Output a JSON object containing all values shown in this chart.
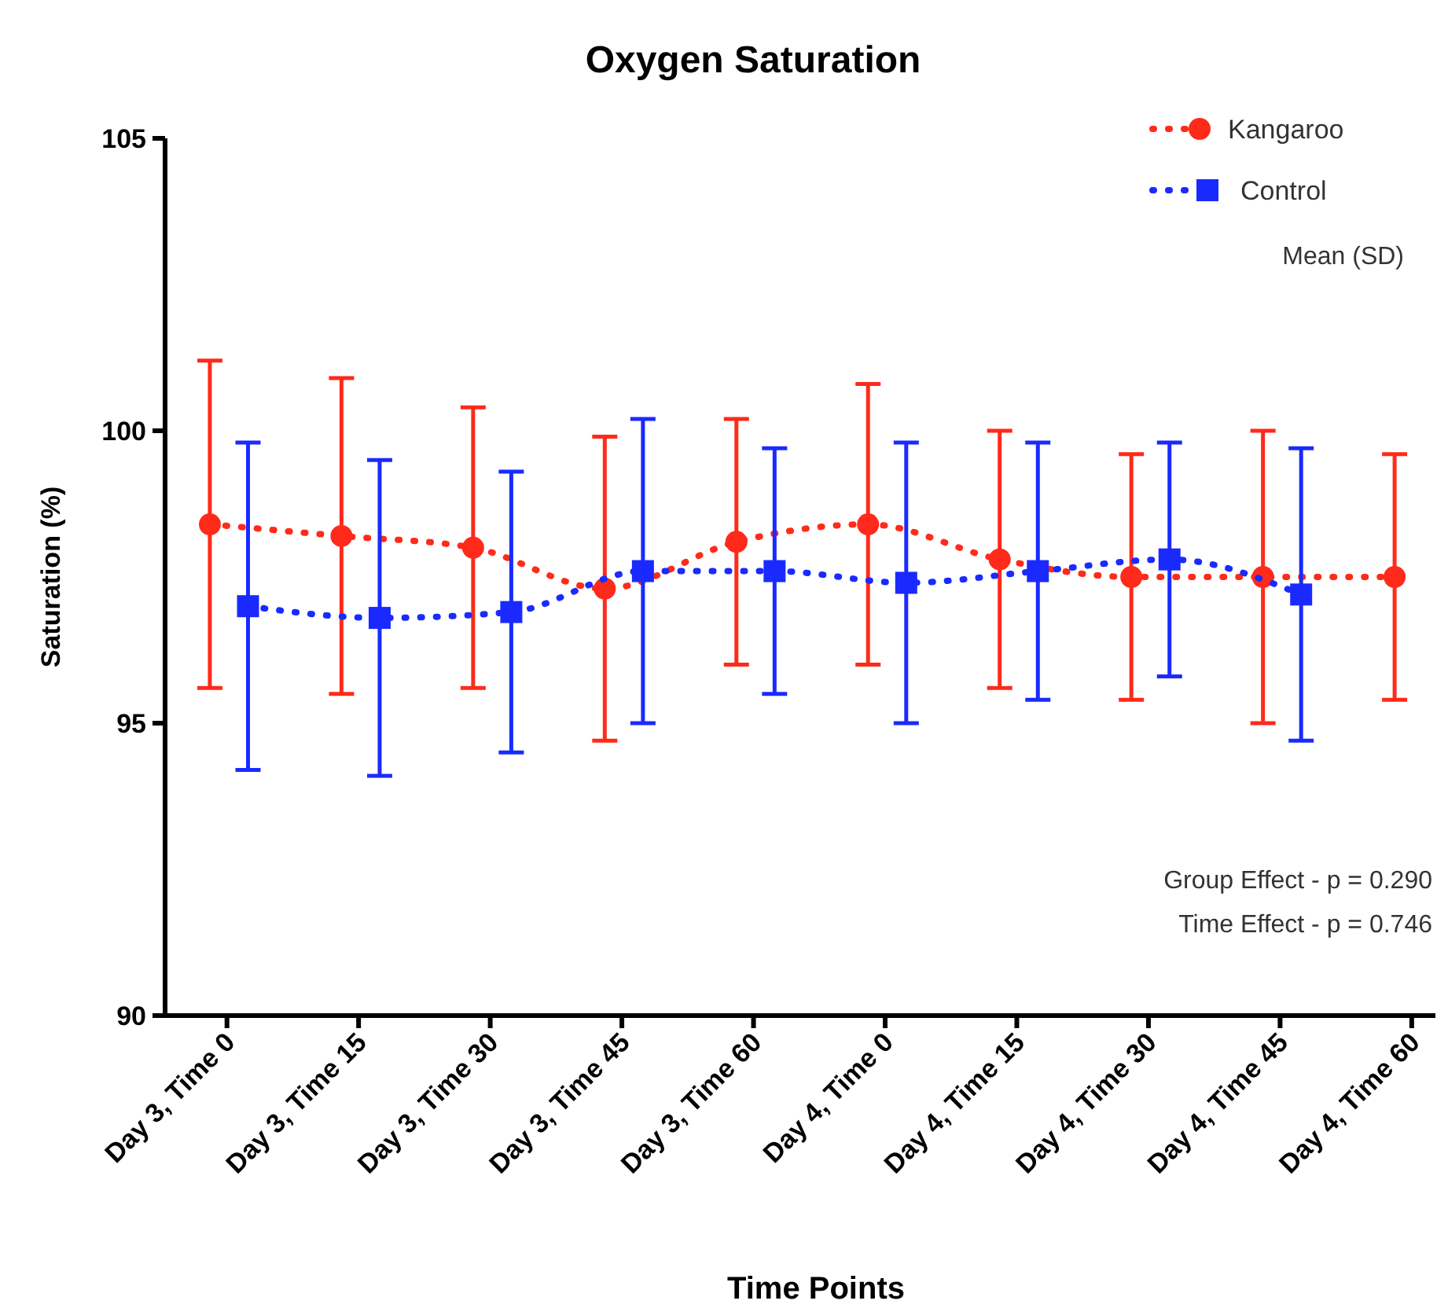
{
  "chart_data": {
    "type": "line",
    "title": "Oxygen Saturation",
    "xlabel": "Time Points",
    "ylabel": "Saturation (%)",
    "categories": [
      "Day 3, Time 0",
      "Day 3, Time 15",
      "Day 3, Time 30",
      "Day 3, Time 45",
      "Day 3, Time 60",
      "Day 4, Time 0",
      "Day 4, Time 15",
      "Day 4, Time 30",
      "Day 4, Time 45",
      "Day 4, Time 60"
    ],
    "series": [
      {
        "name": "Kangaroo",
        "color": "#ff2a1a",
        "marker": "circle",
        "values": [
          98.4,
          98.2,
          98.0,
          97.3,
          98.1,
          98.4,
          97.8,
          97.5,
          97.5,
          97.5
        ],
        "errors": [
          2.8,
          2.7,
          2.4,
          2.6,
          2.1,
          2.4,
          2.2,
          2.1,
          2.5,
          2.1
        ]
      },
      {
        "name": "Control",
        "color": "#1a2aff",
        "marker": "square",
        "values": [
          97.0,
          96.8,
          96.9,
          97.6,
          97.6,
          97.4,
          97.6,
          97.8,
          97.2,
          null
        ],
        "errors": [
          2.8,
          2.7,
          2.4,
          2.6,
          2.1,
          2.4,
          2.2,
          2.0,
          2.5,
          null
        ]
      }
    ],
    "ylim": [
      90,
      105
    ],
    "yticks": [
      90,
      95,
      100,
      105
    ],
    "grid": false,
    "legend": "top right",
    "line_style": "dotted",
    "annotations": [
      "Mean (SD)",
      "Group Effect -  p = 0.290",
      "Time Effect  -  p = 0.746"
    ]
  }
}
